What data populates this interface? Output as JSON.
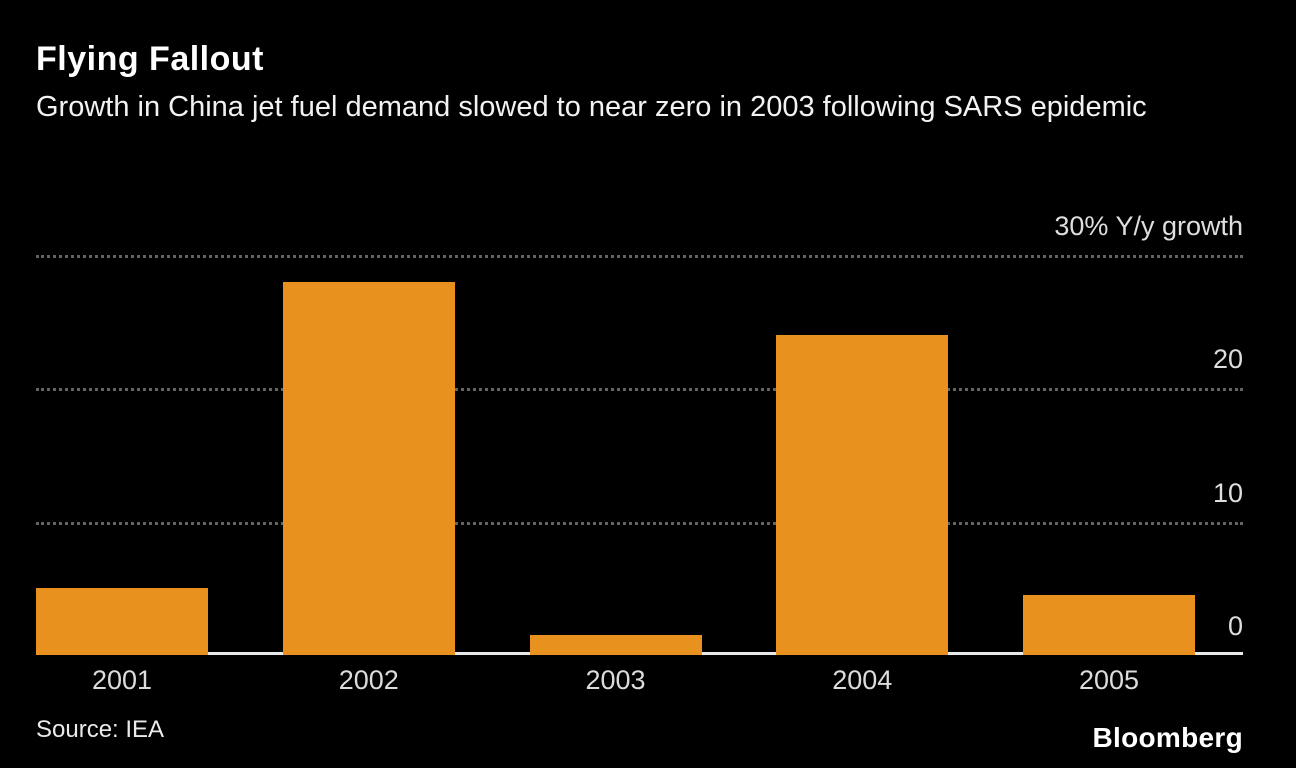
{
  "header": {
    "title": "Flying Fallout",
    "subtitle": "Growth in China jet fuel demand slowed to near zero in 2003 following SARS epidemic"
  },
  "chart_data": {
    "type": "bar",
    "categories": [
      "2001",
      "2002",
      "2003",
      "2004",
      "2005"
    ],
    "values": [
      5,
      28,
      1.5,
      24,
      4.5
    ],
    "title": "Flying Fallout",
    "subtitle": "Growth in China jet fuel demand slowed to near zero in 2003 following SARS epidemic",
    "xlabel": "",
    "ylabel": "% Y/y growth",
    "ylim": [
      0,
      30
    ],
    "yticks": [
      {
        "value": 30,
        "label": "30% Y/y growth"
      },
      {
        "value": 20,
        "label": "20"
      },
      {
        "value": 10,
        "label": "10"
      },
      {
        "value": 0,
        "label": "0"
      }
    ],
    "grid": "horizontal-dotted",
    "legend": "none",
    "bar_color": "#E8911F",
    "background_color": "#000000"
  },
  "footer": {
    "source": "Source: IEA",
    "brand": "Bloomberg"
  }
}
